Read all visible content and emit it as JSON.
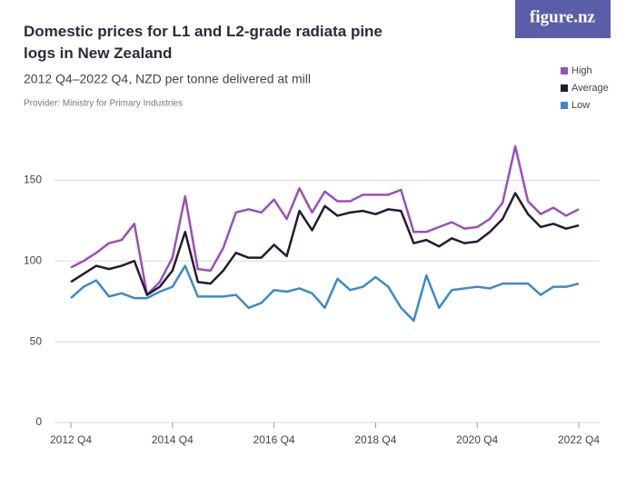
{
  "chart_data": {
    "type": "line",
    "title": "Domestic prices for L1 and L2-grade radiata pine logs in New Zealand",
    "subtitle": "2012 Q4–2022 Q4, NZD per tonne delivered at mill",
    "provider": "Provider: Ministry for Primary Industries",
    "logo": "figure.nz",
    "categories": [
      "2012 Q4",
      null,
      null,
      null,
      null,
      null,
      null,
      null,
      "2014 Q4",
      null,
      null,
      null,
      null,
      null,
      null,
      null,
      "2016 Q4",
      null,
      null,
      null,
      null,
      null,
      null,
      null,
      "2018 Q4",
      null,
      null,
      null,
      null,
      null,
      null,
      null,
      "2020 Q4",
      null,
      null,
      null,
      null,
      null,
      null,
      null,
      "2022 Q4"
    ],
    "series": [
      {
        "name": "High",
        "color": "#9b4fb8",
        "values": [
          96,
          100,
          105,
          111,
          113,
          123,
          79,
          87,
          102,
          140,
          95,
          94,
          108,
          130,
          132,
          130,
          138,
          126,
          145,
          130,
          143,
          137,
          137,
          141,
          141,
          141,
          144,
          118,
          118,
          121,
          124,
          120,
          121,
          126,
          136,
          171,
          137,
          129,
          133,
          128,
          132
        ]
      },
      {
        "name": "Average",
        "color": "#261a30",
        "values": [
          87,
          92,
          97,
          95,
          97,
          100,
          79,
          84,
          94,
          118,
          87,
          86,
          94,
          105,
          102,
          102,
          110,
          103,
          131,
          119,
          134,
          128,
          130,
          131,
          129,
          132,
          131,
          111,
          113,
          109,
          114,
          111,
          112,
          118,
          126,
          142,
          129,
          121,
          123,
          120,
          122
        ]
      },
      {
        "name": "Low",
        "color": "#3c8ac8",
        "values": [
          77,
          84,
          88,
          78,
          80,
          77,
          77,
          81,
          84,
          97,
          78,
          78,
          78,
          79,
          71,
          74,
          82,
          81,
          83,
          80,
          71,
          89,
          82,
          84,
          90,
          84,
          71,
          63,
          91,
          71,
          82,
          83,
          84,
          83,
          86,
          86,
          86,
          79,
          84,
          84,
          86
        ]
      }
    ],
    "ylim": [
      0,
      180
    ],
    "yticks": [
      0,
      50,
      100,
      150
    ],
    "grid": true,
    "legend": "top-right"
  }
}
